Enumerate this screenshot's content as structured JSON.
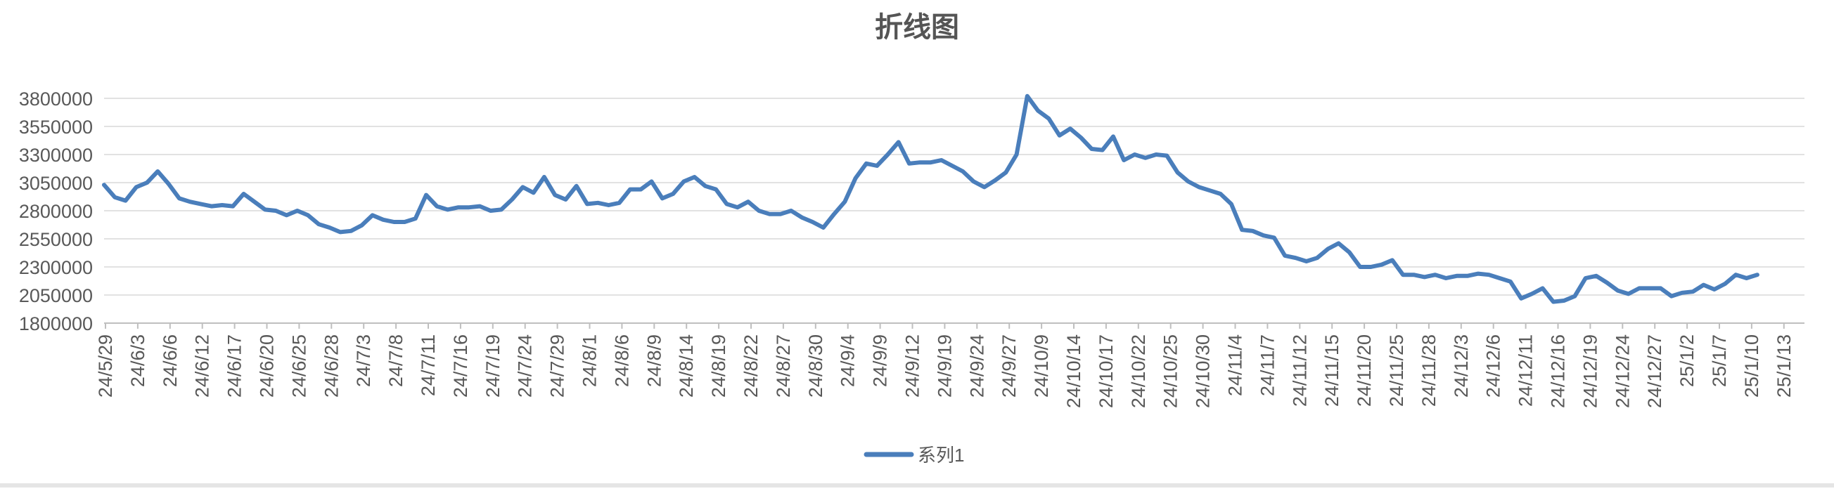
{
  "chart_data": {
    "type": "line",
    "title": "折线图",
    "xlabel": "",
    "ylabel": "",
    "ylim": [
      1800000,
      3800000
    ],
    "yticks": [
      1800000,
      2050000,
      2300000,
      2550000,
      2800000,
      3050000,
      3300000,
      3550000,
      3800000
    ],
    "grid": true,
    "legend": "bottom-center",
    "line_color": "#4a7ebb",
    "x_tick_labels": [
      "24/5/29",
      "24/6/3",
      "24/6/6",
      "24/6/12",
      "24/6/17",
      "24/6/20",
      "24/6/25",
      "24/6/28",
      "24/7/3",
      "24/7/8",
      "24/7/11",
      "24/7/16",
      "24/7/19",
      "24/7/24",
      "24/7/29",
      "24/8/1",
      "24/8/6",
      "24/8/9",
      "24/8/14",
      "24/8/19",
      "24/8/22",
      "24/8/27",
      "24/8/30",
      "24/9/4",
      "24/9/9",
      "24/9/12",
      "24/9/19",
      "24/9/24",
      "24/9/27",
      "24/10/9",
      "24/10/14",
      "24/10/17",
      "24/10/22",
      "24/10/25",
      "24/10/30",
      "24/11/4",
      "24/11/7",
      "24/11/12",
      "24/11/15",
      "24/11/20",
      "24/11/25",
      "24/11/28",
      "24/12/3",
      "24/12/6",
      "24/12/11",
      "24/12/16",
      "24/12/19",
      "24/12/24",
      "24/12/27",
      "25/1/2",
      "25/1/7",
      "25/1/10",
      "25/1/13"
    ],
    "series": [
      {
        "name": "系列1",
        "values": [
          3030000,
          2920000,
          2890000,
          3010000,
          3050000,
          3150000,
          3040000,
          2910000,
          2880000,
          2860000,
          2840000,
          2850000,
          2840000,
          2950000,
          2880000,
          2810000,
          2800000,
          2760000,
          2800000,
          2760000,
          2680000,
          2650000,
          2610000,
          2620000,
          2670000,
          2760000,
          2720000,
          2700000,
          2700000,
          2730000,
          2940000,
          2840000,
          2810000,
          2830000,
          2830000,
          2840000,
          2800000,
          2810000,
          2900000,
          3010000,
          2960000,
          3100000,
          2940000,
          2900000,
          3020000,
          2860000,
          2870000,
          2850000,
          2870000,
          2990000,
          2990000,
          3060000,
          2910000,
          2950000,
          3060000,
          3100000,
          3020000,
          2990000,
          2860000,
          2830000,
          2880000,
          2800000,
          2770000,
          2770000,
          2800000,
          2740000,
          2700000,
          2650000,
          2770000,
          2880000,
          3090000,
          3220000,
          3200000,
          3300000,
          3410000,
          3220000,
          3230000,
          3230000,
          3250000,
          3200000,
          3150000,
          3060000,
          3010000,
          3070000,
          3140000,
          3300000,
          3820000,
          3690000,
          3620000,
          3470000,
          3530000,
          3450000,
          3350000,
          3340000,
          3460000,
          3250000,
          3300000,
          3270000,
          3300000,
          3290000,
          3140000,
          3060000,
          3010000,
          2980000,
          2950000,
          2860000,
          2630000,
          2620000,
          2580000,
          2560000,
          2400000,
          2380000,
          2350000,
          2380000,
          2460000,
          2510000,
          2430000,
          2300000,
          2300000,
          2320000,
          2360000,
          2230000,
          2230000,
          2210000,
          2230000,
          2200000,
          2220000,
          2220000,
          2240000,
          2230000,
          2200000,
          2170000,
          2020000,
          2060000,
          2110000,
          1990000,
          2000000,
          2040000,
          2200000,
          2220000,
          2160000,
          2090000,
          2060000,
          2110000,
          2110000,
          2110000,
          2040000,
          2070000,
          2080000,
          2140000,
          2100000,
          2150000,
          2230000,
          2200000,
          2230000
        ]
      }
    ]
  }
}
